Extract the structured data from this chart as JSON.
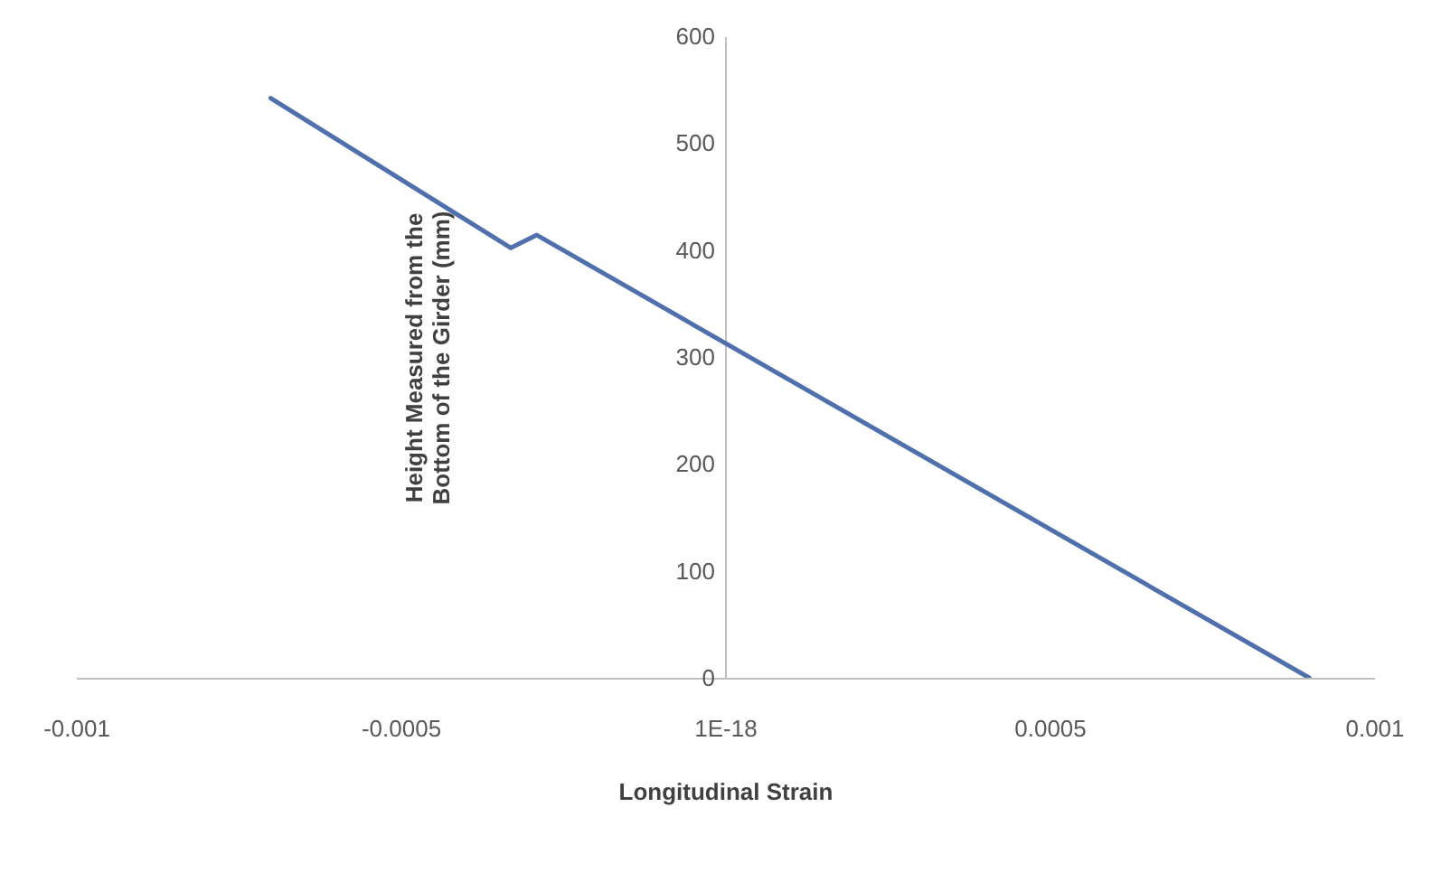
{
  "chart_data": {
    "type": "line",
    "xlabel": "Longitudinal Strain",
    "ylabel": "Height Measured from the Bottom of the Girder (mm)",
    "x": [
      -0.0007,
      -0.00029,
      -0.00033,
      0.0009
    ],
    "series": [
      {
        "color": "#4f6fad",
        "values": [
          542,
          414,
          402,
          0
        ]
      }
    ],
    "xlim": [
      -0.001,
      0.001
    ],
    "xticks": [
      -0.001,
      -0.0005,
      {
        "value": 0,
        "label": "1E-18"
      },
      0.0005,
      0.001
    ],
    "ylim": [
      0,
      600
    ],
    "yticks": [
      0,
      100,
      200,
      300,
      400,
      500,
      600
    ],
    "grid": false,
    "marker": "none",
    "line_style": "solid"
  }
}
